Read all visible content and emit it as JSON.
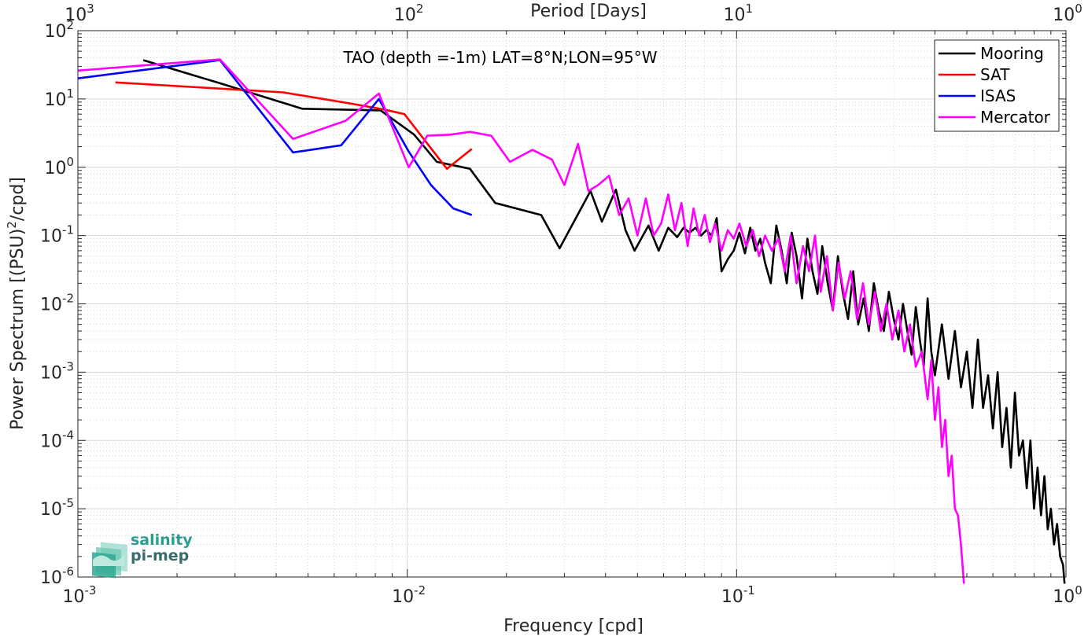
{
  "chart_data": {
    "type": "line",
    "title": "TAO (depth =-1m) LAT=8°N;LON=95°W",
    "xlabel": "Frequency [cpd]",
    "ylabel": "Power Spectrum [(PSU)²/cpd]",
    "top_xlabel": "Period [Days]",
    "x_scale": "log",
    "y_scale": "log",
    "xlim": [
      0.001,
      1
    ],
    "ylim": [
      1e-06,
      100
    ],
    "grid": true,
    "legend_position": "top-right",
    "x_ticks": [
      {
        "base": "10",
        "exp": "-3",
        "value": 0.001
      },
      {
        "base": "10",
        "exp": "-2",
        "value": 0.01
      },
      {
        "base": "10",
        "exp": "-1",
        "value": 0.1
      },
      {
        "base": "10",
        "exp": "0",
        "value": 1
      }
    ],
    "top_ticks": [
      {
        "base": "10",
        "exp": "3",
        "value": 0.001
      },
      {
        "base": "10",
        "exp": "2",
        "value": 0.01
      },
      {
        "base": "10",
        "exp": "1",
        "value": 0.1
      },
      {
        "base": "10",
        "exp": "0",
        "value": 1
      }
    ],
    "y_ticks": [
      {
        "base": "10",
        "exp": "2",
        "value": 100
      },
      {
        "base": "10",
        "exp": "1",
        "value": 10
      },
      {
        "base": "10",
        "exp": "0",
        "value": 1
      },
      {
        "base": "10",
        "exp": "-1",
        "value": 0.1
      },
      {
        "base": "10",
        "exp": "-2",
        "value": 0.01
      },
      {
        "base": "10",
        "exp": "-3",
        "value": 0.001
      },
      {
        "base": "10",
        "exp": "-4",
        "value": 0.0001
      },
      {
        "base": "10",
        "exp": "-5",
        "value": 1e-05
      },
      {
        "base": "10",
        "exp": "-6",
        "value": 1e-06
      }
    ],
    "series": [
      {
        "name": "Mooring",
        "color": "#000000",
        "x": [
          0.00158,
          0.0027,
          0.0048,
          0.0083,
          0.0105,
          0.0123,
          0.0155,
          0.0185,
          0.0255,
          0.029,
          0.036,
          0.039,
          0.043,
          0.046,
          0.049,
          0.054,
          0.058,
          0.062,
          0.066,
          0.069,
          0.072,
          0.075,
          0.078,
          0.081,
          0.084,
          0.087,
          0.09,
          0.094,
          0.098,
          0.102,
          0.106,
          0.11,
          0.114,
          0.118,
          0.122,
          0.127,
          0.132,
          0.137,
          0.142,
          0.147,
          0.152,
          0.158,
          0.164,
          0.17,
          0.176,
          0.182,
          0.189,
          0.196,
          0.203,
          0.21,
          0.218,
          0.226,
          0.234,
          0.243,
          0.252,
          0.261,
          0.27,
          0.28,
          0.29,
          0.3,
          0.31,
          0.32,
          0.33,
          0.34,
          0.35,
          0.36,
          0.37,
          0.38,
          0.39,
          0.4,
          0.42,
          0.44,
          0.46,
          0.48,
          0.5,
          0.52,
          0.54,
          0.56,
          0.58,
          0.6,
          0.62,
          0.64,
          0.66,
          0.68,
          0.7,
          0.72,
          0.74,
          0.76,
          0.78,
          0.8,
          0.82,
          0.84,
          0.86,
          0.88,
          0.9,
          0.92,
          0.94,
          0.96,
          0.98,
          0.99
        ],
        "y": [
          37,
          17,
          7.2,
          6.8,
          3.0,
          1.2,
          0.95,
          0.3,
          0.2,
          0.065,
          0.45,
          0.16,
          0.47,
          0.12,
          0.06,
          0.14,
          0.06,
          0.13,
          0.095,
          0.13,
          0.11,
          0.13,
          0.1,
          0.12,
          0.1,
          0.18,
          0.03,
          0.045,
          0.06,
          0.11,
          0.055,
          0.13,
          0.06,
          0.09,
          0.04,
          0.02,
          0.14,
          0.06,
          0.02,
          0.11,
          0.05,
          0.012,
          0.09,
          0.03,
          0.014,
          0.07,
          0.02,
          0.008,
          0.05,
          0.015,
          0.006,
          0.03,
          0.005,
          0.012,
          0.004,
          0.02,
          0.008,
          0.004,
          0.015,
          0.006,
          0.003,
          0.01,
          0.004,
          0.0018,
          0.009,
          0.003,
          0.0012,
          0.012,
          0.002,
          0.0009,
          0.005,
          0.0008,
          0.004,
          0.0006,
          0.002,
          0.0003,
          0.003,
          0.0003,
          0.0009,
          0.00015,
          0.001,
          8e-05,
          0.0003,
          4e-05,
          0.0005,
          6e-05,
          0.0001,
          2e-05,
          0.0001,
          1e-05,
          4e-05,
          8e-06,
          3e-05,
          5e-06,
          1e-05,
          3e-06,
          6e-06,
          2e-06,
          1.5e-06,
          8e-07
        ]
      },
      {
        "name": "SAT",
        "color": "#ff0000",
        "x": [
          0.0013,
          0.0042,
          0.0068,
          0.0085,
          0.0098,
          0.0132,
          0.0157
        ],
        "y": [
          17.5,
          12.5,
          8.5,
          7.0,
          6.0,
          0.95,
          1.85
        ]
      },
      {
        "name": "ISAS",
        "color": "#0000ff",
        "x": [
          0.001,
          0.0027,
          0.0045,
          0.0063,
          0.0082,
          0.0101,
          0.0118,
          0.0138,
          0.0157
        ],
        "y": [
          20,
          37,
          1.65,
          2.1,
          10,
          1.7,
          0.55,
          0.25,
          0.2
        ]
      },
      {
        "name": "Mercator",
        "color": "#ff00ff",
        "x": [
          0.001,
          0.0027,
          0.0045,
          0.0065,
          0.0082,
          0.0101,
          0.0115,
          0.0135,
          0.0155,
          0.018,
          0.0205,
          0.024,
          0.0275,
          0.03,
          0.033,
          0.0355,
          0.038,
          0.041,
          0.044,
          0.047,
          0.05,
          0.053,
          0.056,
          0.059,
          0.062,
          0.065,
          0.068,
          0.071,
          0.074,
          0.077,
          0.08,
          0.083,
          0.086,
          0.09,
          0.094,
          0.098,
          0.102,
          0.107,
          0.112,
          0.117,
          0.122,
          0.128,
          0.134,
          0.14,
          0.146,
          0.152,
          0.159,
          0.166,
          0.173,
          0.18,
          0.188,
          0.196,
          0.204,
          0.213,
          0.222,
          0.232,
          0.242,
          0.252,
          0.263,
          0.274,
          0.285,
          0.297,
          0.31,
          0.323,
          0.336,
          0.35,
          0.365,
          0.38,
          0.39,
          0.4,
          0.41,
          0.42,
          0.43,
          0.44,
          0.45,
          0.46,
          0.47,
          0.48,
          0.49
        ],
        "y": [
          26,
          38,
          2.6,
          4.8,
          12,
          1.0,
          2.9,
          3.0,
          3.3,
          2.9,
          1.2,
          1.8,
          1.3,
          0.55,
          2.2,
          0.45,
          0.55,
          0.75,
          0.2,
          0.35,
          0.1,
          0.35,
          0.1,
          0.15,
          0.4,
          0.12,
          0.3,
          0.07,
          0.25,
          0.1,
          0.2,
          0.08,
          0.15,
          0.06,
          0.12,
          0.09,
          0.15,
          0.07,
          0.12,
          0.05,
          0.1,
          0.06,
          0.09,
          0.03,
          0.1,
          0.02,
          0.07,
          0.03,
          0.1,
          0.015,
          0.05,
          0.008,
          0.04,
          0.012,
          0.03,
          0.006,
          0.02,
          0.005,
          0.015,
          0.004,
          0.01,
          0.003,
          0.008,
          0.002,
          0.005,
          0.0012,
          0.002,
          0.0004,
          0.0015,
          0.0002,
          0.0006,
          8e-05,
          0.0002,
          3e-05,
          6e-05,
          1e-05,
          8e-06,
          3e-06,
          8e-07
        ]
      }
    ]
  },
  "logo": {
    "line1": "salinity",
    "line2": "pi-mep"
  }
}
